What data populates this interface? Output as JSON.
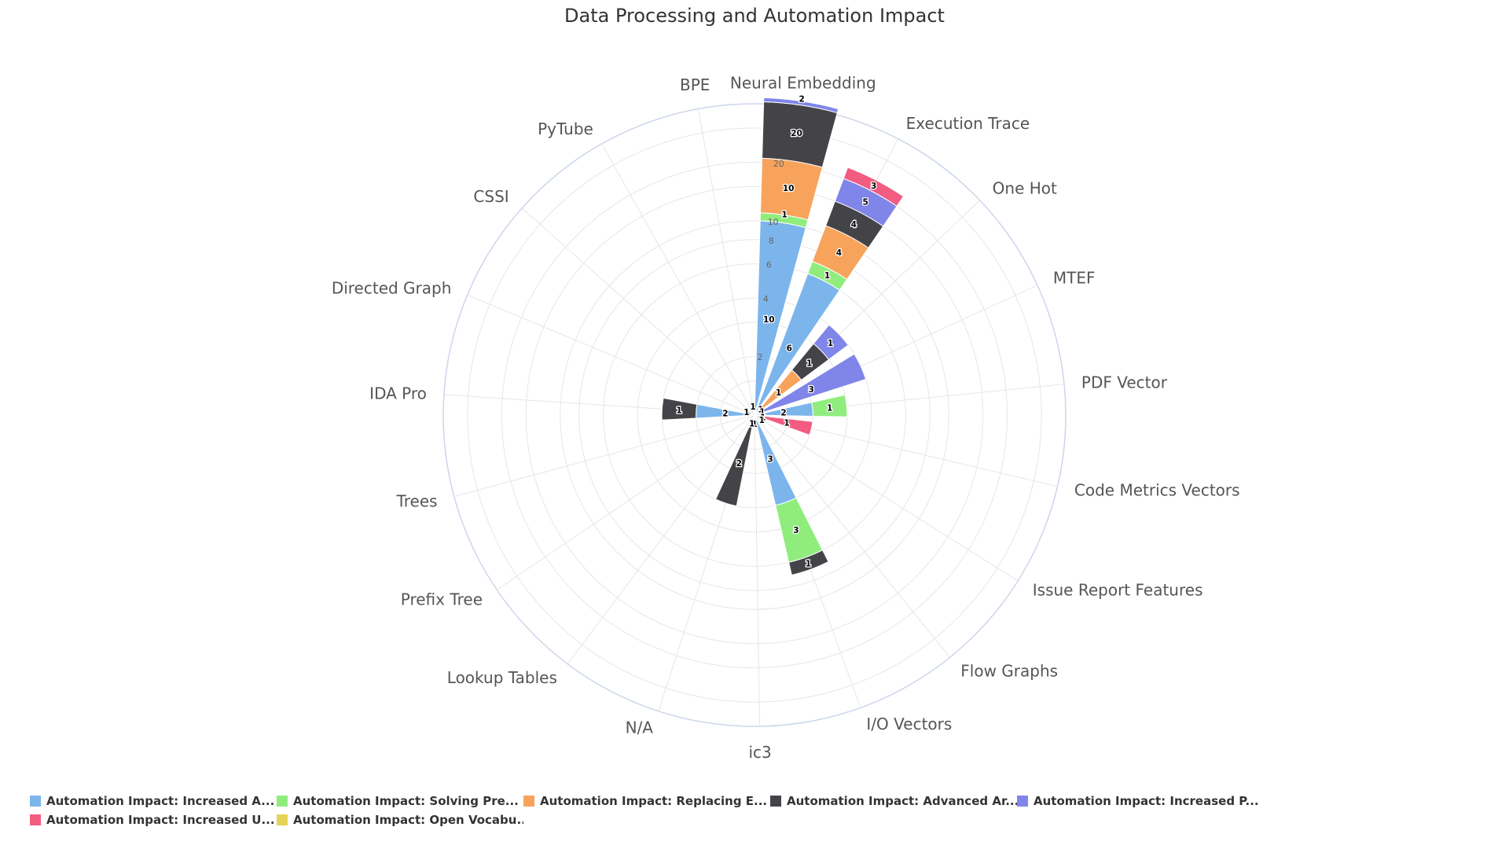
{
  "chart_data": {
    "type": "polar-stacked-bar",
    "title": "Data Processing and Automation Impact",
    "radial_scale": "logarithmic",
    "radial_ticks": [
      "2",
      "4",
      "6",
      "8",
      "10",
      "20"
    ],
    "categories": [
      "Neural Embedding",
      "Execution Trace",
      "One Hot",
      "MTEF",
      "PDF Vector",
      "Code Metrics Vectors",
      "Issue Report Features",
      "Flow Graphs",
      "I/O Vectors",
      "ic3",
      "N/A",
      "Lookup Tables",
      "Prefix Tree",
      "Trees",
      "IDA Pro",
      "Directed Graph",
      "CSSI",
      "PyTube",
      "BPE"
    ],
    "series": [
      {
        "name": "Automation Impact: Increased A...",
        "color": "#7cb5ec",
        "values": [
          10,
          6,
          0,
          0,
          2,
          0,
          0,
          0,
          3,
          1,
          1,
          0,
          0,
          0,
          2,
          0,
          0,
          0,
          0
        ]
      },
      {
        "name": "Automation Impact: Solving Pre...",
        "color": "#90ed7d",
        "values": [
          1,
          1,
          1,
          0,
          1,
          0,
          0,
          0,
          3,
          0,
          0,
          0,
          0,
          0,
          0,
          0,
          0,
          0,
          0
        ]
      },
      {
        "name": "Automation Impact: Replacing E...",
        "color": "#f7a35c",
        "values": [
          10,
          4,
          1,
          1,
          0,
          0,
          0,
          0,
          0,
          0,
          0,
          0,
          0,
          0,
          0,
          0,
          0,
          0,
          0
        ]
      },
      {
        "name": "Automation Impact: Advanced Ar...",
        "color": "#434348",
        "values": [
          20,
          4,
          1,
          0,
          0,
          1,
          1,
          0,
          1,
          0,
          2,
          0,
          0,
          0,
          1,
          1,
          0,
          0,
          0
        ]
      },
      {
        "name": "Automation Impact: Increased P...",
        "color": "#8085e9",
        "values": [
          2,
          5,
          1,
          3,
          0,
          0,
          0,
          0,
          0,
          0,
          0,
          0,
          0,
          0,
          0,
          0,
          0,
          0,
          0
        ]
      },
      {
        "name": "Automation Impact: Increased U...",
        "color": "#f15c80",
        "values": [
          0,
          3,
          0,
          0,
          0,
          1,
          0,
          0,
          0,
          0,
          0,
          0,
          0,
          0,
          0,
          0,
          0,
          0,
          0
        ]
      },
      {
        "name": "Automation Impact: Open Vocabu...",
        "color": "#e4d354",
        "values": [
          0,
          0,
          0,
          0,
          0,
          0,
          0,
          0,
          0,
          0,
          0,
          0,
          0,
          0,
          0,
          0,
          0,
          0,
          1
        ]
      }
    ],
    "legend_position": "bottom",
    "grid": true
  }
}
